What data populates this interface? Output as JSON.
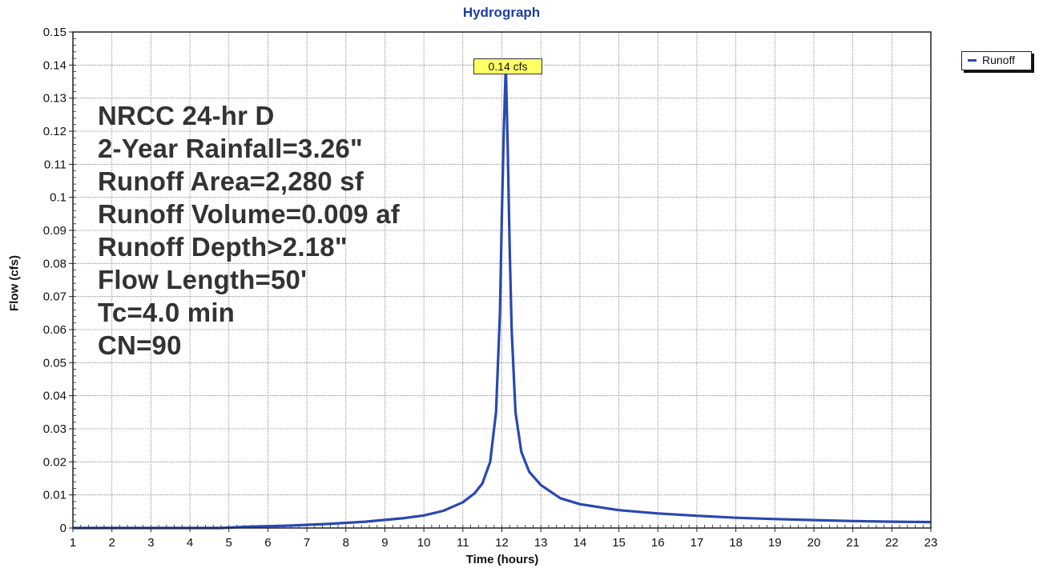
{
  "chart_data": {
    "type": "line",
    "title": "Hydrograph",
    "xlabel": "Time  (hours)",
    "ylabel": "Flow  (cfs)",
    "xlim": [
      1,
      23
    ],
    "ylim": [
      0,
      0.15
    ],
    "x_ticks": [
      1,
      2,
      3,
      4,
      5,
      6,
      7,
      8,
      9,
      10,
      11,
      12,
      13,
      14,
      15,
      16,
      17,
      18,
      19,
      20,
      21,
      22,
      23
    ],
    "y_ticks": [
      0,
      0.01,
      0.02,
      0.03,
      0.04,
      0.05,
      0.06,
      0.07,
      0.08,
      0.09,
      0.1,
      0.11,
      0.12,
      0.13,
      0.14,
      0.15
    ],
    "y_tick_labels": [
      "0",
      "0.01",
      "0.02",
      "0.03",
      "0.04",
      "0.05",
      "0.06",
      "0.07",
      "0.08",
      "0.09",
      "0.1",
      "0.11",
      "0.12",
      "0.13",
      "0.14",
      "0.15"
    ],
    "grid": true,
    "legend": {
      "position": "top-right",
      "entries": [
        "Runoff"
      ]
    },
    "series": [
      {
        "name": "Runoff",
        "color": "#2a48b0",
        "x": [
          1,
          4.8,
          5.5,
          6.5,
          7.5,
          8.5,
          9.5,
          10.0,
          10.5,
          11.0,
          11.3,
          11.5,
          11.7,
          11.85,
          11.95,
          12.0,
          12.05,
          12.1,
          12.15,
          12.2,
          12.25,
          12.35,
          12.5,
          12.7,
          13.0,
          13.5,
          14.0,
          15.0,
          16.0,
          17.0,
          18.0,
          19.0,
          20.0,
          21.0,
          22.0,
          23.0
        ],
        "values": [
          0,
          0,
          0.0004,
          0.0007,
          0.0012,
          0.0019,
          0.003,
          0.0038,
          0.0052,
          0.0078,
          0.0105,
          0.0135,
          0.02,
          0.035,
          0.065,
          0.095,
          0.12,
          0.14,
          0.115,
          0.085,
          0.06,
          0.035,
          0.023,
          0.017,
          0.013,
          0.009,
          0.0072,
          0.0054,
          0.0044,
          0.0037,
          0.0031,
          0.0027,
          0.0024,
          0.0021,
          0.0019,
          0.0018
        ]
      }
    ],
    "annotations": {
      "peak_label": "0.14 cfs",
      "peak_x": 12.1,
      "peak_y": 0.14,
      "notes": [
        "NRCC 24-hr D",
        "2-Year Rainfall=3.26\"",
        "Runoff Area=2,280 sf",
        "Runoff Volume=0.009 af",
        "Runoff Depth>2.18\"",
        "Flow Length=50'",
        "Tc=4.0 min",
        "CN=90"
      ]
    },
    "colors": {
      "title": "#1f3c9e",
      "series": "#2a48b0",
      "peak_box": "#ffff66",
      "notes": "#333333"
    }
  }
}
